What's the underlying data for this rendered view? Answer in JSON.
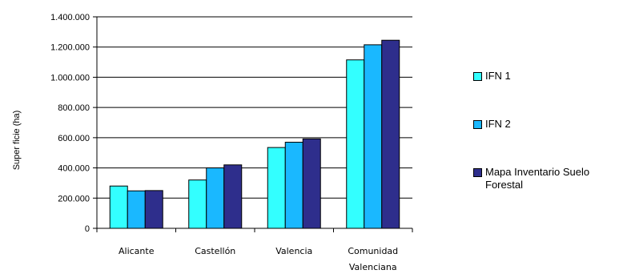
{
  "chart_data": {
    "type": "bar",
    "categories": [
      [
        "Alicante"
      ],
      [
        "Castellón"
      ],
      [
        "Valencia"
      ],
      [
        "Comunidad",
        "Valenciana"
      ]
    ],
    "series": [
      {
        "name": "IFN 1",
        "color": "#33ffff",
        "values": [
          280000,
          320000,
          535000,
          1115000
        ]
      },
      {
        "name": "IFN 2",
        "color": "#1ab8ff",
        "values": [
          248000,
          400000,
          570000,
          1215000
        ]
      },
      {
        "name": "Mapa Inventario Suelo Forestal",
        "color": "#2e2e8c",
        "values": [
          250000,
          420000,
          592000,
          1245000
        ]
      }
    ],
    "ylabel": "Super ficie (ha)",
    "ylim": [
      0,
      1400000
    ],
    "yticks": [
      "0",
      "200.000",
      "400.000",
      "600.000",
      "800.000",
      "1.000.000",
      "1.200.000",
      "1.400.000"
    ],
    "grid": true,
    "legend_position": "right"
  },
  "legend": {
    "items": [
      {
        "lines": [
          "IFN 1"
        ]
      },
      {
        "lines": [
          "IFN 2"
        ]
      },
      {
        "lines": [
          "Mapa Inventario Suelo",
          "Forestal"
        ]
      }
    ]
  }
}
